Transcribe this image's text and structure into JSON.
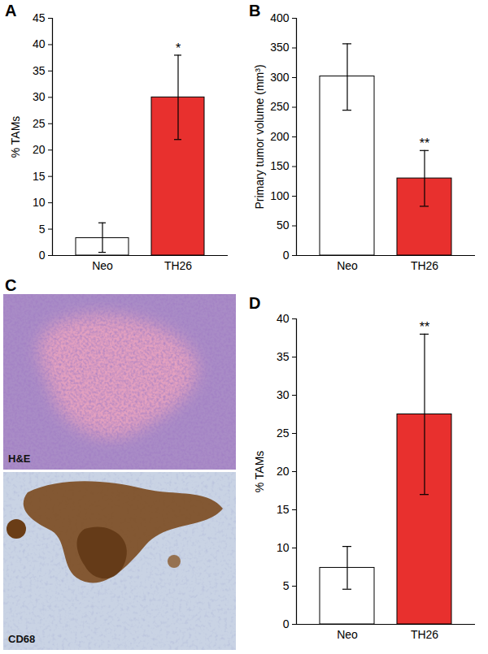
{
  "chart_data": [
    {
      "type": "bar",
      "panel": "A",
      "ylabel": "% TAMs",
      "categories": [
        "Neo",
        "TH26"
      ],
      "values": [
        3.3,
        30
      ],
      "error_low": [
        0.6,
        22
      ],
      "error_high": [
        6.2,
        38
      ],
      "annotations": [
        null,
        "*"
      ],
      "colors": [
        "#ffffff",
        "#e8302e"
      ],
      "ylim": [
        0,
        45
      ],
      "yticks": [
        0,
        5,
        10,
        15,
        20,
        25,
        30,
        35,
        40,
        45
      ]
    },
    {
      "type": "bar",
      "panel": "B",
      "ylabel": "Primary tumor volume (mm³)",
      "categories": [
        "Neo",
        "TH26"
      ],
      "values": [
        302,
        130
      ],
      "error_low": [
        245,
        83
      ],
      "error_high": [
        357,
        177
      ],
      "annotations": [
        null,
        "**"
      ],
      "colors": [
        "#ffffff",
        "#e8302e"
      ],
      "ylim": [
        0,
        400
      ],
      "yticks": [
        0,
        50,
        100,
        150,
        200,
        250,
        300,
        350,
        400
      ]
    },
    {
      "type": "bar",
      "panel": "D",
      "ylabel": "% TAMs",
      "categories": [
        "Neo",
        "TH26"
      ],
      "values": [
        7.4,
        27.5
      ],
      "error_low": [
        4.6,
        17
      ],
      "error_high": [
        10.2,
        38
      ],
      "annotations": [
        null,
        "**"
      ],
      "colors": [
        "#ffffff",
        "#e8302e"
      ],
      "ylim": [
        0,
        40
      ],
      "yticks": [
        0,
        5,
        10,
        15,
        20,
        25,
        30,
        35,
        40
      ]
    }
  ],
  "images": {
    "panel": "C",
    "labels": [
      "H&E",
      "CD68"
    ]
  }
}
